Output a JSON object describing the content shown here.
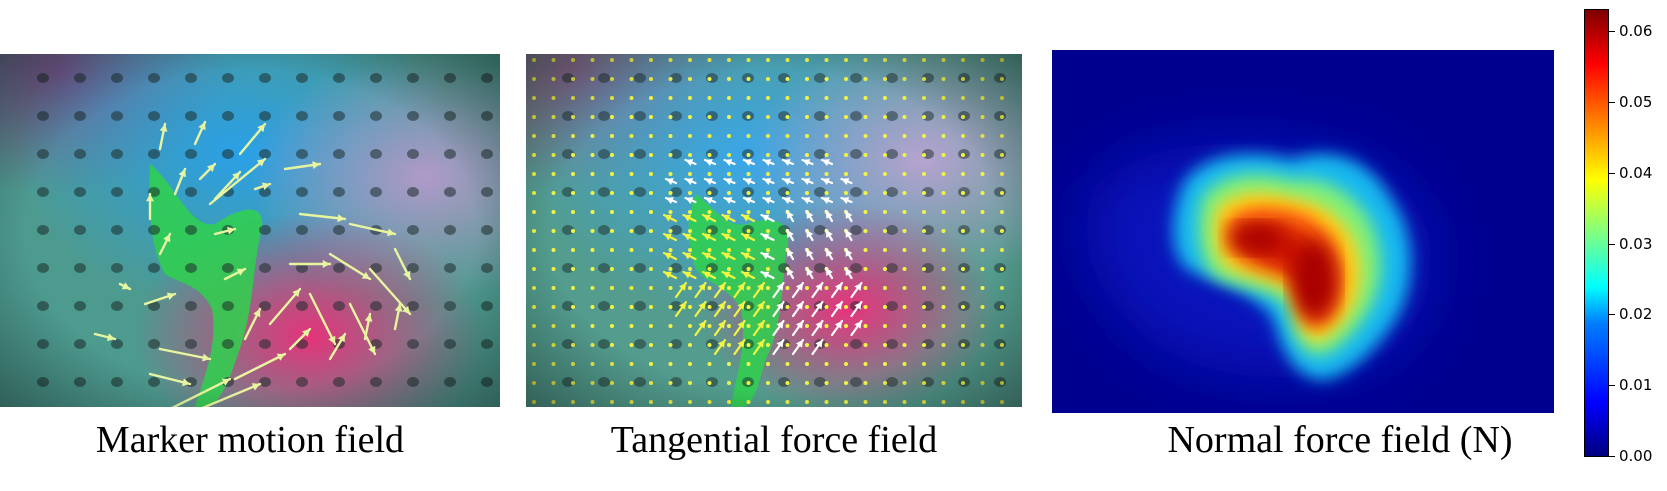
{
  "figure": {
    "panels": [
      {
        "id": "motion",
        "caption": "Marker motion field"
      },
      {
        "id": "tangential",
        "caption": "Tangential force field"
      },
      {
        "id": "normal",
        "caption": "Normal force field (N)"
      }
    ]
  },
  "colorbar": {
    "colormap": "jet",
    "min": 0.0,
    "max": 0.063,
    "ticks": [
      "0.00",
      "0.01",
      "0.02",
      "0.03",
      "0.04",
      "0.05",
      "0.06"
    ]
  },
  "colors": {
    "arrow_motion": "#e8f5a0",
    "arrow_tangential": "#ffffff",
    "marker_dot": "#f2f542",
    "background_blue": "#00008f"
  }
}
